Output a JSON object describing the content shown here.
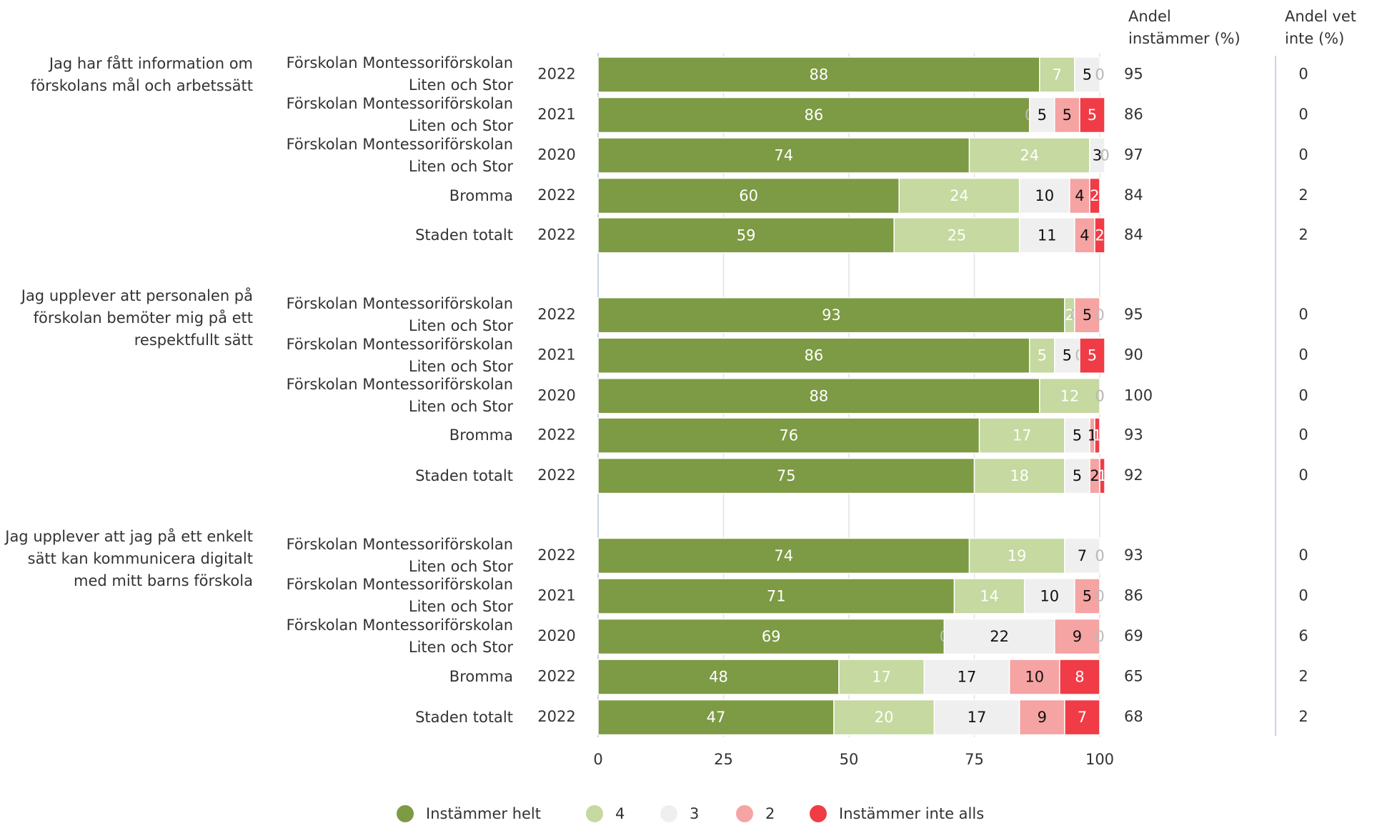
{
  "chart_data": {
    "type": "stacked_bar_h",
    "questions": [
      "Jag har fått information om förskolans mål och arbetssätt",
      "Jag upplever att personalen på förskolan bemöter mig på ett respektfullt sätt",
      "Jag upplever att jag på ett enkelt sätt kan kommunicera digitalt med mitt barns förskola"
    ],
    "categories": [
      "Förskolan Montessoriförskolan Liten och Stor",
      "Förskolan Montessoriförskolan Liten och Stor",
      "Förskolan Montessoriförskolan Liten och Stor",
      "Bromma",
      "Staden totalt",
      "Förskolan Montessoriförskolan Liten och Stor",
      "Förskolan Montessoriförskolan Liten och Stor",
      "Förskolan Montessoriförskolan Liten och Stor",
      "Bromma",
      "Staden totalt",
      "Förskolan Montessoriförskolan Liten och Stor",
      "Förskolan Montessoriförskolan Liten och Stor",
      "Förskolan Montessoriförskolan Liten och Stor",
      "Bromma",
      "Staden totalt"
    ],
    "years": [
      "2022",
      "2021",
      "2020",
      "2022",
      "2022",
      "2022",
      "2021",
      "2020",
      "2022",
      "2022",
      "2022",
      "2021",
      "2020",
      "2022",
      "2022"
    ],
    "series": [
      {
        "name": "Instämmer helt",
        "color": "#7d9a44",
        "values": [
          88,
          86,
          74,
          60,
          59,
          93,
          86,
          88,
          76,
          75,
          74,
          71,
          69,
          48,
          47
        ]
      },
      {
        "name": "4",
        "color": "#c5d9a0",
        "values": [
          7,
          0,
          24,
          24,
          25,
          2,
          5,
          12,
          17,
          18,
          19,
          14,
          0,
          17,
          20
        ]
      },
      {
        "name": "3",
        "color": "#efefef",
        "values": [
          5,
          5,
          3,
          10,
          11,
          0,
          5,
          0,
          5,
          5,
          7,
          10,
          22,
          17,
          17
        ]
      },
      {
        "name": "2",
        "color": "#f5a3a3",
        "values": [
          0,
          5,
          0,
          4,
          4,
          5,
          0,
          0,
          1,
          2,
          0,
          5,
          9,
          10,
          9
        ]
      },
      {
        "name": "Instämmer inte alls",
        "color": "#f03c46",
        "values": [
          0,
          5,
          0,
          2,
          2,
          0,
          5,
          0,
          1,
          1,
          0,
          0,
          0,
          8,
          7
        ]
      }
    ],
    "agree_header": "Andel instämmer (%)",
    "agree": [
      95,
      86,
      97,
      84,
      84,
      95,
      90,
      100,
      93,
      92,
      93,
      86,
      69,
      65,
      68
    ],
    "dontknow_header": "Andel vet inte (%)",
    "dontknow": [
      0,
      0,
      0,
      2,
      2,
      0,
      0,
      0,
      0,
      0,
      0,
      0,
      6,
      2,
      2
    ],
    "xlim": [
      0,
      100
    ],
    "xticks": [
      0,
      25,
      50,
      75,
      100
    ],
    "grid": true
  }
}
